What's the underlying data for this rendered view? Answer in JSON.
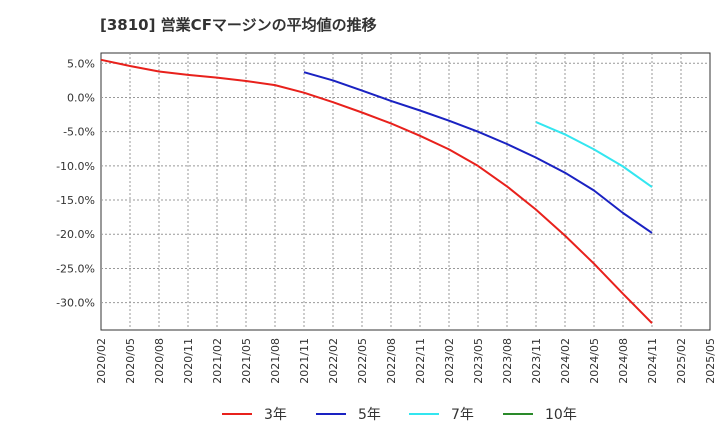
{
  "chart_data": {
    "type": "line",
    "title": "[3810]  営業CFマージンの平均値の推移",
    "xlabel": "",
    "ylabel": "",
    "ylim": [
      -34,
      6.5
    ],
    "yticks": [
      5,
      0,
      -5,
      -10,
      -15,
      -20,
      -25,
      -30
    ],
    "ytick_labels": [
      "5.0%",
      "0.0%",
      "-5.0%",
      "-10.0%",
      "-15.0%",
      "-20.0%",
      "-25.0%",
      "-30.0%"
    ],
    "x_categories": [
      "2020/02",
      "2020/05",
      "2020/08",
      "2020/11",
      "2021/02",
      "2021/05",
      "2021/08",
      "2021/11",
      "2022/02",
      "2022/05",
      "2022/08",
      "2022/11",
      "2023/02",
      "2023/05",
      "2023/08",
      "2023/11",
      "2024/02",
      "2024/05",
      "2024/08",
      "2024/11",
      "2025/02",
      "2025/05"
    ],
    "grid": true,
    "legend_position": "bottom",
    "series": [
      {
        "name": "3年",
        "color": "#e8211c",
        "points": [
          [
            "2020/02",
            5.5
          ],
          [
            "2020/05",
            4.6
          ],
          [
            "2020/08",
            3.8
          ],
          [
            "2020/11",
            3.3
          ],
          [
            "2021/02",
            2.9
          ],
          [
            "2021/05",
            2.4
          ],
          [
            "2021/08",
            1.8
          ],
          [
            "2021/11",
            0.7
          ],
          [
            "2022/02",
            -0.7
          ],
          [
            "2022/05",
            -2.2
          ],
          [
            "2022/08",
            -3.8
          ],
          [
            "2022/11",
            -5.6
          ],
          [
            "2023/02",
            -7.6
          ],
          [
            "2023/05",
            -10.0
          ],
          [
            "2023/08",
            -13.0
          ],
          [
            "2023/11",
            -16.4
          ],
          [
            "2024/02",
            -20.2
          ],
          [
            "2024/05",
            -24.3
          ],
          [
            "2024/08",
            -28.7
          ],
          [
            "2024/11",
            -33.0
          ]
        ]
      },
      {
        "name": "5年",
        "color": "#1a22c2",
        "points": [
          [
            "2021/11",
            3.7
          ],
          [
            "2022/02",
            2.5
          ],
          [
            "2022/05",
            1.0
          ],
          [
            "2022/08",
            -0.5
          ],
          [
            "2022/11",
            -1.9
          ],
          [
            "2023/02",
            -3.4
          ],
          [
            "2023/05",
            -5.0
          ],
          [
            "2023/08",
            -6.8
          ],
          [
            "2023/11",
            -8.8
          ],
          [
            "2024/02",
            -11.0
          ],
          [
            "2024/05",
            -13.6
          ],
          [
            "2024/08",
            -16.9
          ],
          [
            "2024/11",
            -19.8
          ]
        ]
      },
      {
        "name": "7年",
        "color": "#33e6f0",
        "points": [
          [
            "2023/11",
            -3.6
          ],
          [
            "2024/02",
            -5.4
          ],
          [
            "2024/05",
            -7.6
          ],
          [
            "2024/08",
            -10.1
          ],
          [
            "2024/11",
            -13.1
          ]
        ]
      },
      {
        "name": "10年",
        "color": "#2a8a2a",
        "points": []
      }
    ]
  }
}
